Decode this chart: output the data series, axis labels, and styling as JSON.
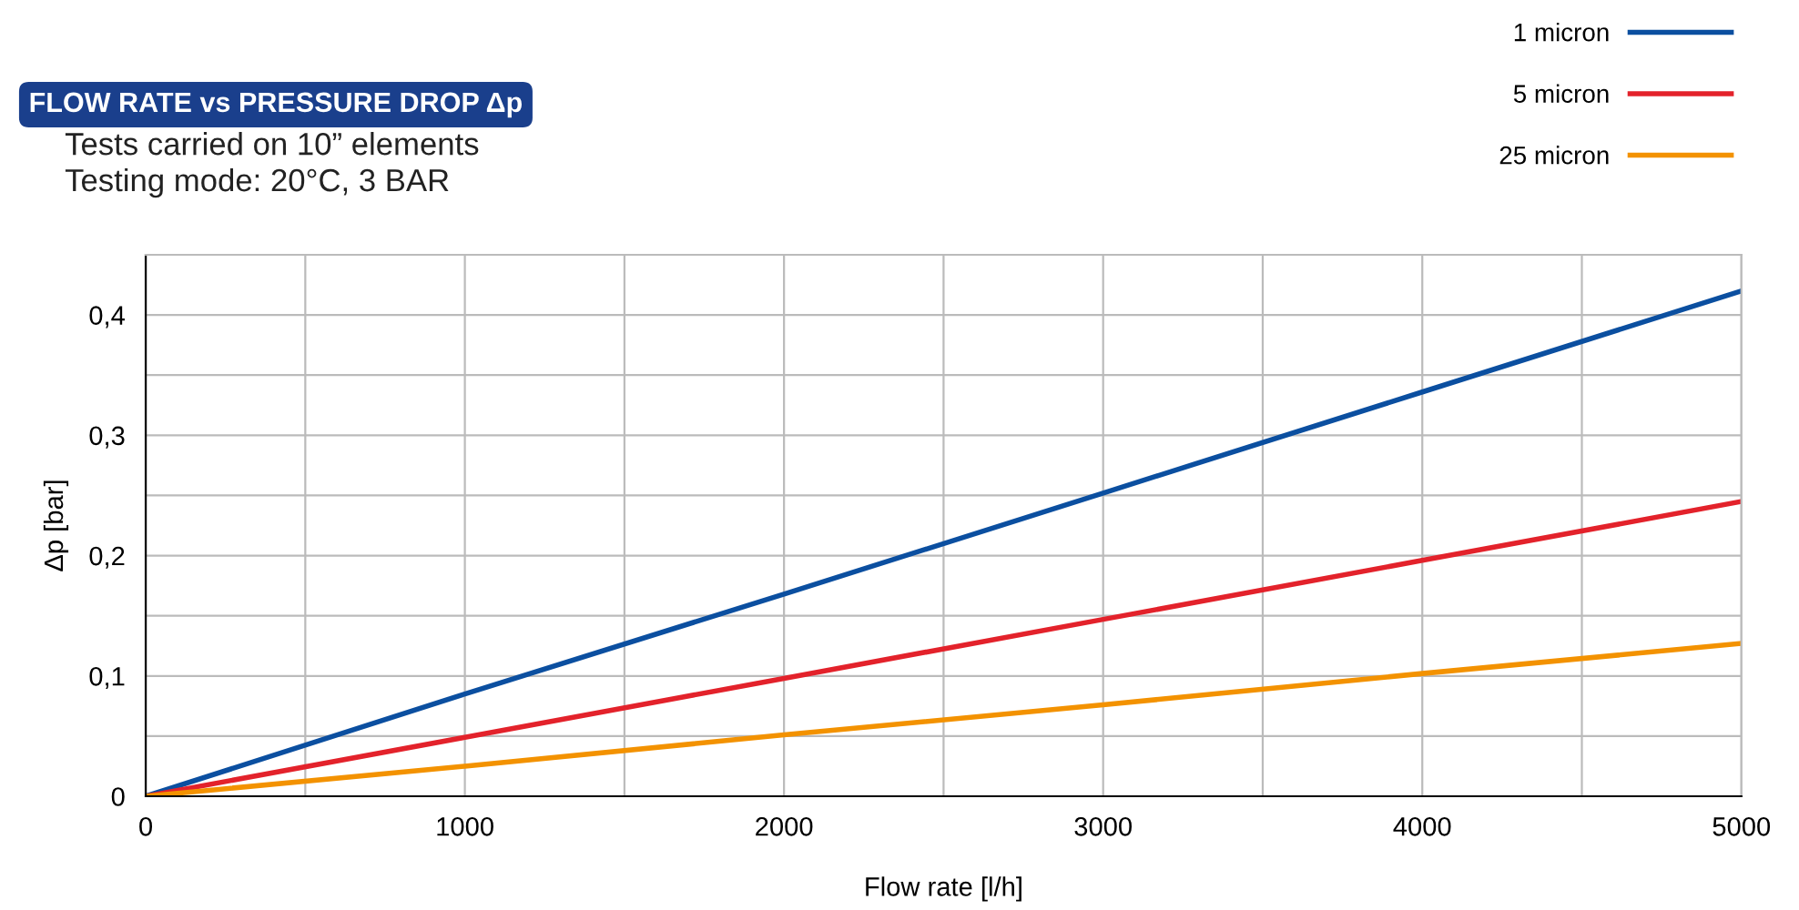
{
  "chart_data": {
    "type": "line",
    "title": "FLOW RATE vs PRESSURE DROP Δp",
    "subtitle": "Tests carried on 10” elements\nTesting mode: 20°C, 3 BAR",
    "xlabel": "Flow rate [l/h]",
    "ylabel": "Δp [bar]",
    "x": [
      0,
      1000,
      2000,
      3000,
      4000,
      5000
    ],
    "series": [
      {
        "name": "1 micron",
        "color": "#0b4fa0",
        "values": [
          0,
          0.085,
          0.168,
          0.252,
          0.336,
          0.42
        ]
      },
      {
        "name": "5 micron",
        "color": "#e3222b",
        "values": [
          0,
          0.049,
          0.098,
          0.147,
          0.196,
          0.245
        ]
      },
      {
        "name": "25 micron",
        "color": "#f39200",
        "values": [
          0,
          0.025,
          0.051,
          0.076,
          0.102,
          0.127
        ]
      }
    ],
    "xlim": [
      0,
      5000
    ],
    "ylim": [
      0,
      0.45
    ],
    "xticks": [
      0,
      {
        "value": 500,
        "label": null
      },
      1000,
      {
        "value": 1500,
        "label": null
      },
      2000,
      {
        "value": 2500,
        "label": null
      },
      3000,
      {
        "value": 3500,
        "label": null
      },
      4000,
      {
        "value": 4500,
        "label": null
      },
      5000
    ],
    "yticks": [
      {
        "value": 0,
        "label": "0"
      },
      {
        "value": 0.05,
        "label": null
      },
      {
        "value": 0.1,
        "label": "0,1"
      },
      {
        "value": 0.15,
        "label": null
      },
      {
        "value": 0.2,
        "label": "0,2"
      },
      {
        "value": 0.25,
        "label": null
      },
      {
        "value": 0.3,
        "label": "0,3"
      },
      {
        "value": 0.35,
        "label": null
      },
      {
        "value": 0.4,
        "label": "0,4"
      }
    ],
    "grid": true,
    "legend": "top right",
    "marker": "none",
    "line_style": "solid"
  }
}
